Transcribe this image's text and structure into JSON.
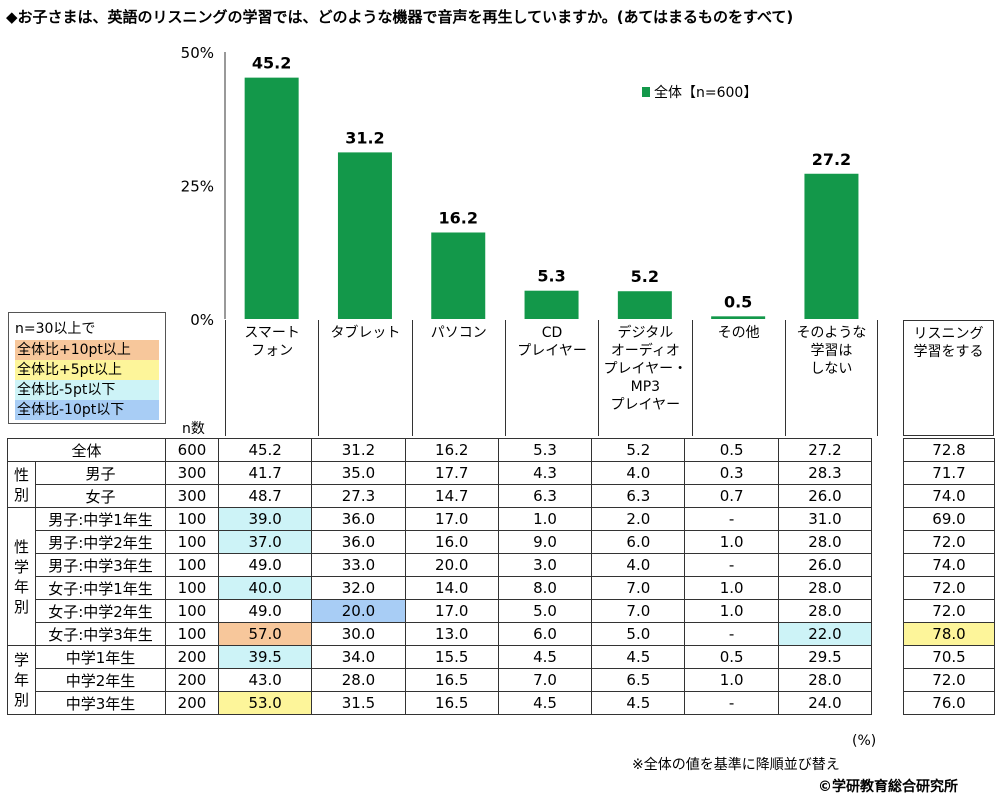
{
  "title": "◆お子さまは、英語のリスニングの学習では、どのような機器で音声を再生していますか。(あてはまるものをすべて)",
  "colors": {
    "bar": "#13984a",
    "plus10": "#f7c79b",
    "plus5": "#fdf59a",
    "minus5": "#cdf3f7",
    "minus10": "#a8cdf5"
  },
  "chart_data": {
    "type": "bar",
    "categories": [
      "スマート\nフォン",
      "タブレット",
      "パソコン",
      "CD\nプレイヤー",
      "デジタル\nオーディオ\nプレイヤー・\nMP3\nプレイヤー",
      "その他",
      "そのような\n学習は\nしない"
    ],
    "series": [
      {
        "name": "全体【n=600】",
        "values": [
          45.2,
          31.2,
          16.2,
          5.3,
          5.2,
          0.5,
          27.2
        ]
      }
    ],
    "ylim": [
      0,
      50
    ],
    "yticks": [
      "0%",
      "25%",
      "50%"
    ],
    "legend_position": "top-right"
  },
  "legend": {
    "title": "n=30以上で",
    "items": [
      "全体比+10pt以上",
      "全体比+5pt以上",
      "全体比-5pt以下",
      "全体比-10pt以下"
    ]
  },
  "n_label": "n数",
  "extra_column_header": "リスニング\n学習をする",
  "groups": [
    {
      "label": "性\n別",
      "start": 1,
      "span": 2
    },
    {
      "label": "性\n学\n年\n別",
      "start": 3,
      "span": 6
    },
    {
      "label": "学\n年\n別",
      "start": 9,
      "span": 3
    }
  ],
  "table": {
    "rows": [
      {
        "label": "全体",
        "n": "600",
        "values": [
          "45.2",
          "31.2",
          "16.2",
          "5.3",
          "5.2",
          "0.5",
          "27.2"
        ],
        "extra": "72.8",
        "hl": [
          null,
          null,
          null,
          null,
          null,
          null,
          null
        ],
        "extra_hl": null
      },
      {
        "label": "男子",
        "n": "300",
        "values": [
          "41.7",
          "35.0",
          "17.7",
          "4.3",
          "4.0",
          "0.3",
          "28.3"
        ],
        "extra": "71.7",
        "hl": [
          null,
          null,
          null,
          null,
          null,
          null,
          null
        ],
        "extra_hl": null
      },
      {
        "label": "女子",
        "n": "300",
        "values": [
          "48.7",
          "27.3",
          "14.7",
          "6.3",
          "6.3",
          "0.7",
          "26.0"
        ],
        "extra": "74.0",
        "hl": [
          null,
          null,
          null,
          null,
          null,
          null,
          null
        ],
        "extra_hl": null
      },
      {
        "label": "男子:中学1年生",
        "n": "100",
        "values": [
          "39.0",
          "36.0",
          "17.0",
          "1.0",
          "2.0",
          "-",
          "31.0"
        ],
        "extra": "69.0",
        "hl": [
          "minus5",
          null,
          null,
          null,
          null,
          null,
          null
        ],
        "extra_hl": null
      },
      {
        "label": "男子:中学2年生",
        "n": "100",
        "values": [
          "37.0",
          "36.0",
          "16.0",
          "9.0",
          "6.0",
          "1.0",
          "28.0"
        ],
        "extra": "72.0",
        "hl": [
          "minus5",
          null,
          null,
          null,
          null,
          null,
          null
        ],
        "extra_hl": null
      },
      {
        "label": "男子:中学3年生",
        "n": "100",
        "values": [
          "49.0",
          "33.0",
          "20.0",
          "3.0",
          "4.0",
          "-",
          "26.0"
        ],
        "extra": "74.0",
        "hl": [
          null,
          null,
          null,
          null,
          null,
          null,
          null
        ],
        "extra_hl": null
      },
      {
        "label": "女子:中学1年生",
        "n": "100",
        "values": [
          "40.0",
          "32.0",
          "14.0",
          "8.0",
          "7.0",
          "1.0",
          "28.0"
        ],
        "extra": "72.0",
        "hl": [
          "minus5",
          null,
          null,
          null,
          null,
          null,
          null
        ],
        "extra_hl": null
      },
      {
        "label": "女子:中学2年生",
        "n": "100",
        "values": [
          "49.0",
          "20.0",
          "17.0",
          "5.0",
          "7.0",
          "1.0",
          "28.0"
        ],
        "extra": "72.0",
        "hl": [
          null,
          "minus10",
          null,
          null,
          null,
          null,
          null
        ],
        "extra_hl": null
      },
      {
        "label": "女子:中学3年生",
        "n": "100",
        "values": [
          "57.0",
          "30.0",
          "13.0",
          "6.0",
          "5.0",
          "-",
          "22.0"
        ],
        "extra": "78.0",
        "hl": [
          "plus10",
          null,
          null,
          null,
          null,
          null,
          "minus5"
        ],
        "extra_hl": "plus5"
      },
      {
        "label": "中学1年生",
        "n": "200",
        "values": [
          "39.5",
          "34.0",
          "15.5",
          "4.5",
          "4.5",
          "0.5",
          "29.5"
        ],
        "extra": "70.5",
        "hl": [
          "minus5",
          null,
          null,
          null,
          null,
          null,
          null
        ],
        "extra_hl": null
      },
      {
        "label": "中学2年生",
        "n": "200",
        "values": [
          "43.0",
          "28.0",
          "16.5",
          "7.0",
          "6.5",
          "1.0",
          "28.0"
        ],
        "extra": "72.0",
        "hl": [
          null,
          null,
          null,
          null,
          null,
          null,
          null
        ],
        "extra_hl": null
      },
      {
        "label": "中学3年生",
        "n": "200",
        "values": [
          "53.0",
          "31.5",
          "16.5",
          "4.5",
          "4.5",
          "-",
          "24.0"
        ],
        "extra": "76.0",
        "hl": [
          "plus5",
          null,
          null,
          null,
          null,
          null,
          null
        ],
        "extra_hl": null
      }
    ]
  },
  "footer": {
    "unit": "(%)",
    "note": "※全体の値を基準に降順並び替え",
    "copyright": "©学研教育総合研究所"
  }
}
